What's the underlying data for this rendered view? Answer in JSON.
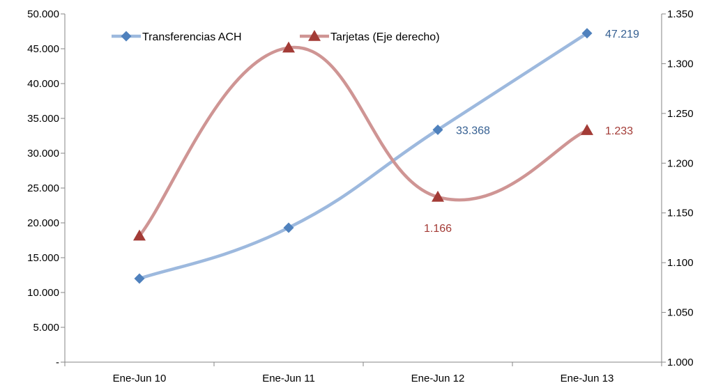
{
  "chart_data": {
    "type": "line",
    "title": "",
    "xlabel": "",
    "ylabel": "",
    "y2label": "",
    "categories": [
      "Ene-Jun 10",
      "Ene-Jun 11",
      "Ene-Jun 12",
      "Ene-Jun 13"
    ],
    "ylim": [
      0,
      50000
    ],
    "y_ticks": [
      "-",
      "5.000",
      "10.000",
      "15.000",
      "20.000",
      "25.000",
      "30.000",
      "35.000",
      "40.000",
      "45.000",
      "50.000"
    ],
    "y2lim": [
      1000,
      1350
    ],
    "y2_ticks": [
      "1.000",
      "1.050",
      "1.100",
      "1.150",
      "1.200",
      "1.250",
      "1.300",
      "1.350"
    ],
    "grid": false,
    "legend_position": "top",
    "series": [
      {
        "name": "Transferencias ACH",
        "axis": "left",
        "values": [
          12000,
          19300,
          33368,
          47219
        ],
        "data_labels": [
          "",
          "",
          "33.368",
          "47.219"
        ],
        "color": "#9DB9DE",
        "marker_color": "#4F81BD",
        "label_color": "#366092",
        "marker": "diamond"
      },
      {
        "name": "Tarjetas (Eje derecho)",
        "axis": "right",
        "values": [
          1127,
          1316,
          1166,
          1233
        ],
        "data_labels": [
          "",
          "",
          "1.166",
          "1.233"
        ],
        "color": "#CF9594",
        "marker_color": "#A33B36",
        "label_color": "#A33B36",
        "marker": "triangle"
      }
    ]
  }
}
